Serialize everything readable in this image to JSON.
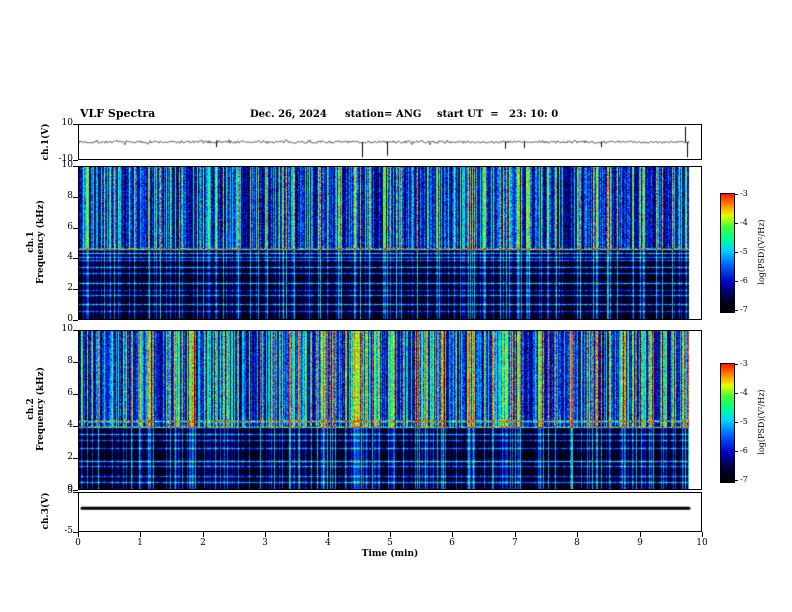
{
  "header": {
    "title": "VLF Spectra",
    "date": "Dec. 26, 2024",
    "station": "station= ANG",
    "start_ut": "start UT  =   23: 10: 0"
  },
  "xaxis": {
    "label": "Time (min)",
    "min": 0,
    "max": 10,
    "ticks": [
      0,
      1,
      2,
      3,
      4,
      5,
      6,
      7,
      8,
      9,
      10
    ]
  },
  "panels": {
    "ch1_wave": {
      "ylabel": "ch.1(V)",
      "ymin": -10,
      "ymax": 10,
      "yticks": [
        10,
        -10
      ]
    },
    "spec1": {
      "ylabel_line1": "ch.1",
      "ylabel_line2": "Frequency (kHz)",
      "ymin": 0,
      "ymax": 10,
      "yticks": [
        10,
        8,
        6,
        4,
        2,
        0
      ]
    },
    "spec2": {
      "ylabel_line1": "ch.2",
      "ylabel_line2": "Frequency (kHz)",
      "ymin": 0,
      "ymax": 10,
      "yticks": [
        10,
        8,
        6,
        4,
        2,
        0
      ]
    },
    "ch3": {
      "ylabel": "ch.3(V)",
      "ymin": -5,
      "ymax": 5,
      "yticks": [
        5,
        -5
      ]
    }
  },
  "colorbar": {
    "label": "log(PSD)(V²/Hz)",
    "min": -7,
    "max": -3,
    "ticks": [
      -3,
      -4,
      -5,
      -6,
      -7
    ],
    "stops": [
      [
        0,
        "#000000"
      ],
      [
        0.12,
        "#00003c"
      ],
      [
        0.25,
        "#0000c8"
      ],
      [
        0.4,
        "#0064ff"
      ],
      [
        0.52,
        "#00d2ff"
      ],
      [
        0.62,
        "#00ff96"
      ],
      [
        0.72,
        "#3cff3c"
      ],
      [
        0.82,
        "#e6ff00"
      ],
      [
        0.9,
        "#ff9600"
      ],
      [
        1,
        "#ff1e00"
      ]
    ]
  },
  "chart_data": [
    {
      "type": "line",
      "panel": "ch1_wave",
      "name": "ch.1 voltage waveform",
      "xlim": [
        0,
        10
      ],
      "ylim": [
        -10,
        10
      ],
      "description": "Broadband VLF noise of roughly ±1 V about 0 V with sporadic sferic impulses; record length ~9.8 min",
      "noise_amplitude_v": 0.8,
      "impulses": [
        {
          "t_min": 2.2,
          "v": -3
        },
        {
          "t_min": 4.55,
          "v": -9
        },
        {
          "t_min": 4.95,
          "v": -8
        },
        {
          "t_min": 6.85,
          "v": -4
        },
        {
          "t_min": 7.15,
          "v": -3.5
        },
        {
          "t_min": 8.4,
          "v": -3
        },
        {
          "t_min": 9.75,
          "v": 9
        },
        {
          "t_min": 9.77,
          "v": -9
        }
      ],
      "data_end_min": 9.8,
      "render": {
        "seed": 7,
        "data_end_frac": 0.982
      }
    },
    {
      "type": "heatmap",
      "panel": "spec1",
      "name": "ch.1 VLF spectrogram",
      "xlim": [
        0,
        10
      ],
      "ylim": [
        0,
        10
      ],
      "zlim": [
        -7,
        -3
      ],
      "zlabel": "log(PSD)(V²/Hz)",
      "description": "Dense vertical sferic striations; above ~4.6 kHz bright activity (blue/cyan/green/yellow/red); below ~4.6 kHz dark blue/black background crossed by narrow bright cyan-green horizontal lines",
      "horizontal_lines_khz": [
        4.6,
        4.35,
        4.1,
        3.85,
        3.4,
        3.0,
        2.4,
        1.9,
        1.55,
        1.0,
        0.55
      ],
      "render": {
        "seed": 101,
        "knee_khz": 4.6,
        "upper_base": -6.9,
        "upper_gain": 3.6,
        "lower_base": -6.85,
        "lower_gain": 2.9,
        "col_threshold": 0.35,
        "strong_col_prob": 0.22,
        "extreme_col_prob": 0.05,
        "lines_khz": [
          [
            4.6,
            1.9
          ],
          [
            4.35,
            1.6
          ],
          [
            4.1,
            1.4
          ],
          [
            3.85,
            1.2
          ],
          [
            3.4,
            1.5
          ],
          [
            3.0,
            1.2
          ],
          [
            2.4,
            1.6
          ],
          [
            1.9,
            0.9
          ],
          [
            1.55,
            1.3
          ],
          [
            1.0,
            1.5
          ],
          [
            0.55,
            1.0
          ]
        ],
        "data_end_frac": 0.982
      }
    },
    {
      "type": "heatmap",
      "panel": "spec2",
      "name": "ch.2 VLF spectrogram",
      "xlim": [
        0,
        10
      ],
      "ylim": [
        0,
        10
      ],
      "zlim": [
        -7,
        -3
      ],
      "zlabel": "log(PSD)(V²/Hz)",
      "description": "Similar to ch.1 but brighter: active band extends down to ~3.9 kHz with more yellow/orange columns; dark low-frequency band with bright horizontal lines",
      "horizontal_lines_khz": [
        4.3,
        3.9,
        3.5,
        3.1,
        2.6,
        1.75,
        1.45,
        0.8,
        0.45
      ],
      "render": {
        "seed": 202,
        "knee_khz": 3.9,
        "upper_base": -6.9,
        "upper_gain": 4.0,
        "lower_base": -6.85,
        "lower_gain": 2.9,
        "col_threshold": 0.35,
        "strong_col_prob": 0.3,
        "extreme_col_prob": 0.07,
        "lines_khz": [
          [
            4.3,
            1.5
          ],
          [
            3.9,
            1.3
          ],
          [
            3.5,
            1.4
          ],
          [
            3.1,
            1.1
          ],
          [
            2.6,
            1.2
          ],
          [
            1.75,
            1.8
          ],
          [
            1.45,
            1.2
          ],
          [
            0.8,
            1.1
          ],
          [
            0.45,
            1.4
          ]
        ],
        "data_end_frac": 0.982
      }
    },
    {
      "type": "line",
      "panel": "ch3",
      "name": "ch.3 voltage (flat)",
      "xlim": [
        0,
        10
      ],
      "ylim": [
        -5,
        5
      ],
      "constant_value": 1,
      "description": "Constant ~+1 V flat thick trace for full ~9.8 min record",
      "data_end_min": 9.8,
      "render": {
        "data_end_frac": 0.982
      }
    }
  ]
}
